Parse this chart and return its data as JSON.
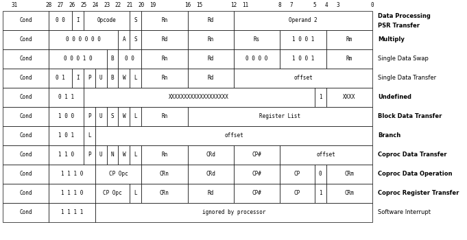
{
  "fig_width": 6.81,
  "fig_height": 3.5,
  "dpi": 100,
  "bg_color": "#ffffff",
  "border_color": "#000000",
  "text_color": "#000000",
  "total_bits": 32,
  "row_labels": [
    "Data Processing\nPSR Transfer",
    "Multiply",
    "Single Data Swap",
    "Single Data Transfer",
    "Undefined",
    "Block Data Transfer",
    "Branch",
    "Coproc Data Transfer",
    "Coproc Data Operation",
    "Coproc Register Transfer",
    "Software Interrupt"
  ],
  "row_bold": [
    false,
    true,
    false,
    false,
    true,
    true,
    true,
    true,
    true,
    true,
    false
  ],
  "row_label_bold_words": [
    [
      "Data",
      "Processing",
      "PSR",
      "Transfer"
    ],
    [
      "Multiply"
    ],
    [],
    [],
    [
      "Undefined"
    ],
    [
      "Block",
      "Data",
      "Transfer"
    ],
    [
      "Branch"
    ],
    [
      "Coproc",
      "Data",
      "Transfer"
    ],
    [
      "Coproc",
      "Data",
      "Operation"
    ],
    [
      "Coproc",
      "Register",
      "Transfer"
    ],
    []
  ],
  "rows": [
    [
      {
        "label": "Cond",
        "start": 28,
        "end": 32
      },
      {
        "label": "0 0",
        "start": 26,
        "end": 28
      },
      {
        "label": "I",
        "start": 25,
        "end": 26
      },
      {
        "label": "Opcode",
        "start": 21,
        "end": 25
      },
      {
        "label": "S",
        "start": 20,
        "end": 21
      },
      {
        "label": "Rn",
        "start": 16,
        "end": 20
      },
      {
        "label": "Rd",
        "start": 12,
        "end": 16
      },
      {
        "label": "Operand 2",
        "start": 0,
        "end": 12
      }
    ],
    [
      {
        "label": "Cond",
        "start": 28,
        "end": 32
      },
      {
        "label": "0 0 0 0 0 0",
        "start": 22,
        "end": 28
      },
      {
        "label": "A",
        "start": 21,
        "end": 22
      },
      {
        "label": "S",
        "start": 20,
        "end": 21
      },
      {
        "label": "Rd",
        "start": 16,
        "end": 20
      },
      {
        "label": "Rn",
        "start": 12,
        "end": 16
      },
      {
        "label": "Rs",
        "start": 8,
        "end": 12
      },
      {
        "label": "1 0 0 1",
        "start": 4,
        "end": 8
      },
      {
        "label": "Rm",
        "start": 0,
        "end": 4
      }
    ],
    [
      {
        "label": "Cond",
        "start": 28,
        "end": 32
      },
      {
        "label": "0 0 0 1 0",
        "start": 23,
        "end": 28
      },
      {
        "label": "B",
        "start": 22,
        "end": 23
      },
      {
        "label": "0 0",
        "start": 20,
        "end": 22
      },
      {
        "label": "Rn",
        "start": 16,
        "end": 20
      },
      {
        "label": "Rd",
        "start": 12,
        "end": 16
      },
      {
        "label": "0 0 0 0",
        "start": 8,
        "end": 12
      },
      {
        "label": "1 0 0 1",
        "start": 4,
        "end": 8
      },
      {
        "label": "Rm",
        "start": 0,
        "end": 4
      }
    ],
    [
      {
        "label": "Cond",
        "start": 28,
        "end": 32
      },
      {
        "label": "0 1",
        "start": 26,
        "end": 28
      },
      {
        "label": "I",
        "start": 25,
        "end": 26
      },
      {
        "label": "P",
        "start": 24,
        "end": 25
      },
      {
        "label": "U",
        "start": 23,
        "end": 24
      },
      {
        "label": "B",
        "start": 22,
        "end": 23
      },
      {
        "label": "W",
        "start": 21,
        "end": 22
      },
      {
        "label": "L",
        "start": 20,
        "end": 21
      },
      {
        "label": "Rn",
        "start": 16,
        "end": 20
      },
      {
        "label": "Rd",
        "start": 12,
        "end": 16
      },
      {
        "label": "offset",
        "start": 0,
        "end": 12
      }
    ],
    [
      {
        "label": "Cond",
        "start": 28,
        "end": 32
      },
      {
        "label": "0 1 1",
        "start": 25,
        "end": 28
      },
      {
        "label": "XXXXXXXXXXXXXXXXXXX",
        "start": 5,
        "end": 25
      },
      {
        "label": "1",
        "start": 4,
        "end": 5
      },
      {
        "label": "XXXX",
        "start": 0,
        "end": 4
      }
    ],
    [
      {
        "label": "Cond",
        "start": 28,
        "end": 32
      },
      {
        "label": "1 0 0",
        "start": 25,
        "end": 28
      },
      {
        "label": "P",
        "start": 24,
        "end": 25
      },
      {
        "label": "U",
        "start": 23,
        "end": 24
      },
      {
        "label": "S",
        "start": 22,
        "end": 23
      },
      {
        "label": "W",
        "start": 21,
        "end": 22
      },
      {
        "label": "L",
        "start": 20,
        "end": 21
      },
      {
        "label": "Rn",
        "start": 16,
        "end": 20
      },
      {
        "label": "Register List",
        "start": 0,
        "end": 16
      }
    ],
    [
      {
        "label": "Cond",
        "start": 28,
        "end": 32
      },
      {
        "label": "1 0 1",
        "start": 25,
        "end": 28
      },
      {
        "label": "L",
        "start": 24,
        "end": 25
      },
      {
        "label": "offset",
        "start": 0,
        "end": 24
      }
    ],
    [
      {
        "label": "Cond",
        "start": 28,
        "end": 32
      },
      {
        "label": "1 1 0",
        "start": 25,
        "end": 28
      },
      {
        "label": "P",
        "start": 24,
        "end": 25
      },
      {
        "label": "U",
        "start": 23,
        "end": 24
      },
      {
        "label": "N",
        "start": 22,
        "end": 23
      },
      {
        "label": "W",
        "start": 21,
        "end": 22
      },
      {
        "label": "L",
        "start": 20,
        "end": 21
      },
      {
        "label": "Rn",
        "start": 16,
        "end": 20
      },
      {
        "label": "CRd",
        "start": 12,
        "end": 16
      },
      {
        "label": "CP#",
        "start": 8,
        "end": 12
      },
      {
        "label": "offset",
        "start": 0,
        "end": 8
      }
    ],
    [
      {
        "label": "Cond",
        "start": 28,
        "end": 32
      },
      {
        "label": "1 1 1 0",
        "start": 24,
        "end": 28
      },
      {
        "label": "CP Opc",
        "start": 20,
        "end": 24
      },
      {
        "label": "CRn",
        "start": 16,
        "end": 20
      },
      {
        "label": "CRd",
        "start": 12,
        "end": 16
      },
      {
        "label": "CP#",
        "start": 8,
        "end": 12
      },
      {
        "label": "CP",
        "start": 5,
        "end": 8
      },
      {
        "label": "0",
        "start": 4,
        "end": 5
      },
      {
        "label": "CRm",
        "start": 0,
        "end": 4
      }
    ],
    [
      {
        "label": "Cond",
        "start": 28,
        "end": 32
      },
      {
        "label": "1 1 1 0",
        "start": 24,
        "end": 28
      },
      {
        "label": "CP Opc",
        "start": 21,
        "end": 24
      },
      {
        "label": "L",
        "start": 20,
        "end": 21
      },
      {
        "label": "CRn",
        "start": 16,
        "end": 20
      },
      {
        "label": "Rd",
        "start": 12,
        "end": 16
      },
      {
        "label": "CP#",
        "start": 8,
        "end": 12
      },
      {
        "label": "CP",
        "start": 5,
        "end": 8
      },
      {
        "label": "1",
        "start": 4,
        "end": 5
      },
      {
        "label": "CRm",
        "start": 0,
        "end": 4
      }
    ],
    [
      {
        "label": "Cond",
        "start": 28,
        "end": 32
      },
      {
        "label": "1 1 1 1",
        "start": 24,
        "end": 28
      },
      {
        "label": "ignored by processor",
        "start": 0,
        "end": 24
      }
    ]
  ]
}
